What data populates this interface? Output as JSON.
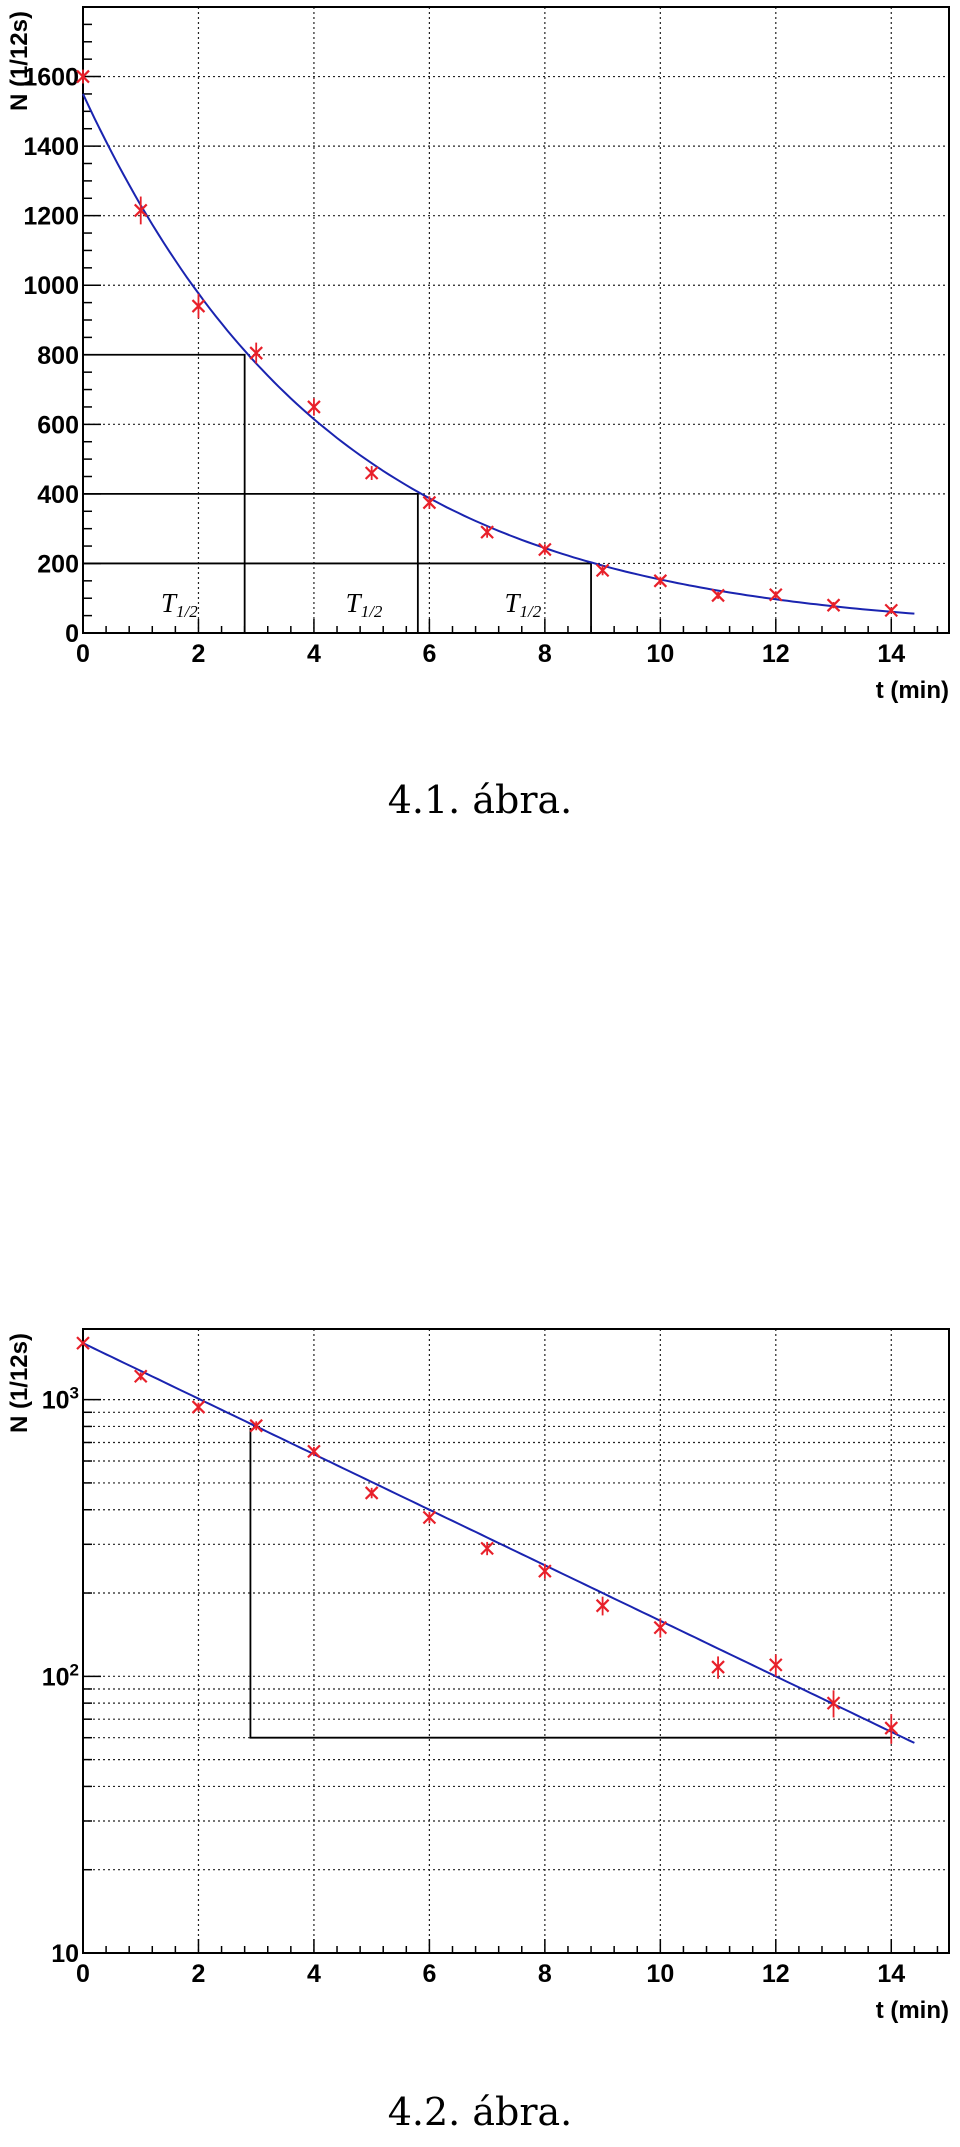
{
  "chart_data": [
    {
      "type": "scatter",
      "title": "",
      "xlabel": "t (min)",
      "ylabel": "N (1/12s)",
      "xlim": [
        0,
        15
      ],
      "ylim": [
        0,
        1800
      ],
      "yscale": "linear",
      "grid": true,
      "x_ticks": [
        0,
        2,
        4,
        6,
        8,
        10,
        12,
        14
      ],
      "y_ticks": [
        0,
        200,
        400,
        600,
        800,
        1000,
        1200,
        1400,
        1600
      ],
      "y_tick_labels": [
        "0",
        "200",
        "400",
        "600",
        "800",
        "1000",
        "1200",
        "1400",
        "1600"
      ],
      "series": [
        {
          "kind": "points_with_error",
          "color": "#e8202a",
          "x": [
            0,
            1,
            2,
            3,
            4,
            5,
            6,
            7,
            8,
            9,
            10,
            11,
            12,
            13,
            14
          ],
          "y": [
            1600,
            1215,
            940,
            805,
            650,
            460,
            375,
            290,
            240,
            180,
            150,
            108,
            110,
            80,
            65
          ],
          "yerr": [
            20,
            40,
            35,
            30,
            25,
            20,
            18,
            16,
            15,
            14,
            12,
            10,
            10,
            9,
            8
          ]
        },
        {
          "kind": "fit_line",
          "color": "#1a24b0",
          "N0": 1550,
          "halflife": 3.0,
          "x_range": [
            0,
            14.4
          ]
        }
      ],
      "annotations": {
        "halflife_marks": [
          {
            "t": 2.8,
            "level": 800
          },
          {
            "t": 5.8,
            "level": 400
          },
          {
            "t": 8.8,
            "level": 200
          }
        ],
        "labels": [
          {
            "main": "T",
            "sub": "1/2",
            "x": 1.35,
            "y": 60
          },
          {
            "main": "T",
            "sub": "1/2",
            "x": 4.55,
            "y": 60
          },
          {
            "main": "T",
            "sub": "1/2",
            "x": 7.3,
            "y": 60
          }
        ]
      }
    },
    {
      "type": "scatter",
      "title": "",
      "xlabel": "t (min)",
      "ylabel": "N (1/12s)",
      "xlim": [
        0,
        15
      ],
      "ylim": [
        10,
        1800
      ],
      "yscale": "log",
      "grid": true,
      "x_ticks": [
        0,
        2,
        4,
        6,
        8,
        10,
        12,
        14
      ],
      "y_major_ticks": [
        {
          "value": 10,
          "base": "10",
          "exp": ""
        },
        {
          "value": 100,
          "base": "10",
          "exp": "2"
        },
        {
          "value": 1000,
          "base": "10",
          "exp": "3"
        }
      ],
      "series": [
        {
          "kind": "points_with_error",
          "color": "#e8202a",
          "x": [
            0,
            1,
            2,
            3,
            4,
            5,
            6,
            7,
            8,
            9,
            10,
            11,
            12,
            13,
            14
          ],
          "y": [
            1600,
            1215,
            940,
            805,
            650,
            460,
            375,
            290,
            240,
            180,
            150,
            108,
            110,
            80,
            65
          ],
          "yerr": [
            20,
            40,
            35,
            30,
            25,
            20,
            18,
            16,
            15,
            14,
            12,
            10,
            10,
            9,
            8
          ]
        },
        {
          "kind": "fit_line",
          "color": "#1a24b0",
          "N0": 1600,
          "halflife": 3.0,
          "x_range": [
            0,
            14.4
          ]
        }
      ],
      "annotations": {
        "triangle": {
          "t_start": 2.9,
          "t_end": 14,
          "n_high": 790,
          "n_low": 60
        }
      }
    }
  ],
  "captions": {
    "fig1": "4.1. ábra.",
    "fig2": "4.2. ábra."
  }
}
